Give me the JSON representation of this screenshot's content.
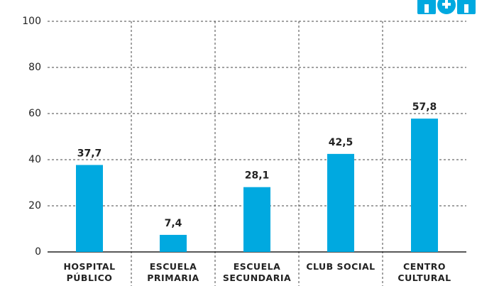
{
  "chart_data": {
    "type": "bar",
    "categories": [
      "HOSPITAL PÚBLICO",
      "ESCUELA PRIMARIA",
      "ESCUELA SECUNDARIA",
      "CLUB SOCIAL",
      "CENTRO CULTURAL"
    ],
    "values": [
      37.7,
      7.4,
      28.1,
      42.5,
      57.8
    ],
    "value_labels": [
      "37,7",
      "7,4",
      "28,1",
      "42,5",
      "57,8"
    ],
    "color": "#00a9e0",
    "ylim": [
      0,
      100
    ],
    "yticks": [
      0,
      20,
      40,
      60,
      80,
      100
    ],
    "grid": true
  }
}
